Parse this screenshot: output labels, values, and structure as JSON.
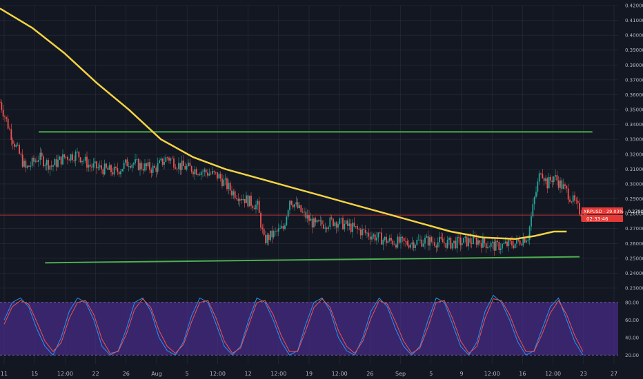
{
  "symbol_tag": "XRPUSD · 29.03% · 0.27905",
  "countdown": "02:33:46",
  "colors": {
    "background": "#131722",
    "grid": "#2a2e39",
    "candle_up": "#26a69a",
    "candle_down": "#ef5350",
    "ma": "#f5d442",
    "support_resistance": "#4caf50",
    "price_line": "#e53935",
    "oscillator_band": "#4a2c8a",
    "stoch_k": "#2196f3",
    "stoch_d": "#ef5350",
    "axis_text": "#b2b5be"
  },
  "chart_data": [
    {
      "type": "candlestick",
      "title": "",
      "x_tick_labels": [
        "11",
        "15",
        "12:00",
        "22",
        "26",
        "Aug",
        "5",
        "12:00",
        "12",
        "12:00",
        "19",
        "12:00",
        "26",
        "Sep",
        "5",
        "9",
        "12:00",
        "16",
        "12:00",
        "23",
        "27"
      ],
      "y_tick_labels": [
        "0.42000",
        "0.41000",
        "0.40000",
        "0.39000",
        "0.38000",
        "0.37000",
        "0.36000",
        "0.35000",
        "0.34000",
        "0.33000",
        "0.32000",
        "0.31000",
        "0.30000",
        "0.29000",
        "0.28000",
        "0.27000",
        "0.26000",
        "0.25000",
        "0.24000",
        "0.23000"
      ],
      "ylim": [
        0.23,
        0.42
      ],
      "close_path": [
        [
          0,
          0.355
        ],
        [
          2,
          0.33
        ],
        [
          4,
          0.31
        ],
        [
          6,
          0.318
        ],
        [
          8,
          0.312
        ],
        [
          10,
          0.318
        ],
        [
          12,
          0.32
        ],
        [
          14,
          0.312
        ],
        [
          16,
          0.31
        ],
        [
          18,
          0.308
        ],
        [
          20,
          0.315
        ],
        [
          22,
          0.312
        ],
        [
          24,
          0.31
        ],
        [
          26,
          0.318
        ],
        [
          28,
          0.312
        ],
        [
          30,
          0.31
        ],
        [
          32,
          0.308
        ],
        [
          34,
          0.305
        ],
        [
          36,
          0.295
        ],
        [
          38,
          0.29
        ],
        [
          40,
          0.285
        ],
        [
          41,
          0.262
        ],
        [
          42,
          0.265
        ],
        [
          44,
          0.27
        ],
        [
          45,
          0.29
        ],
        [
          47,
          0.28
        ],
        [
          49,
          0.272
        ],
        [
          52,
          0.275
        ],
        [
          55,
          0.27
        ],
        [
          58,
          0.265
        ],
        [
          60,
          0.262
        ],
        [
          63,
          0.26
        ],
        [
          66,
          0.262
        ],
        [
          70,
          0.26
        ],
        [
          74,
          0.262
        ],
        [
          77,
          0.258
        ],
        [
          80,
          0.26
        ],
        [
          82,
          0.265
        ],
        [
          83,
          0.29
        ],
        [
          84,
          0.31
        ],
        [
          85,
          0.3
        ],
        [
          86,
          0.305
        ],
        [
          88,
          0.295
        ],
        [
          90,
          0.282
        ],
        [
          91,
          0.279
        ]
      ],
      "moving_average": [
        [
          0,
          0.418
        ],
        [
          5,
          0.405
        ],
        [
          10,
          0.388
        ],
        [
          15,
          0.368
        ],
        [
          20,
          0.35
        ],
        [
          25,
          0.33
        ],
        [
          30,
          0.318
        ],
        [
          35,
          0.31
        ],
        [
          40,
          0.304
        ],
        [
          45,
          0.298
        ],
        [
          50,
          0.292
        ],
        [
          55,
          0.286
        ],
        [
          60,
          0.28
        ],
        [
          65,
          0.274
        ],
        [
          70,
          0.268
        ],
        [
          75,
          0.264
        ],
        [
          80,
          0.263
        ],
        [
          83,
          0.265
        ],
        [
          86,
          0.268
        ],
        [
          88,
          0.268
        ]
      ],
      "x_range": [
        0,
        96
      ],
      "resistance_line": [
        0.335,
        0.335
      ],
      "support_line": [
        0.247,
        0.251
      ],
      "current_price": 0.27905
    },
    {
      "type": "line",
      "title": "",
      "y_tick_labels": [
        "80.00",
        "60.00",
        "40.00",
        "20.00"
      ],
      "ylim": [
        10,
        90
      ],
      "band": [
        20,
        80
      ],
      "series": [
        {
          "values": [
            60,
            80,
            85,
            75,
            50,
            30,
            20,
            40,
            70,
            85,
            80,
            60,
            30,
            20,
            25,
            50,
            80,
            85,
            70,
            40,
            25,
            20,
            35,
            65,
            85,
            80,
            55,
            30,
            20,
            30,
            60,
            85,
            80,
            60,
            35,
            20,
            25,
            55,
            80,
            85,
            70,
            40,
            25,
            20,
            40,
            70,
            85,
            75,
            50,
            30,
            20,
            30,
            60,
            85,
            80,
            55,
            30,
            20,
            35,
            70,
            88,
            80,
            60,
            35,
            20,
            25,
            50,
            75,
            85,
            60,
            35,
            20
          ]
        },
        {
          "values": [
            55,
            75,
            82,
            78,
            58,
            36,
            24,
            34,
            62,
            80,
            82,
            66,
            38,
            22,
            24,
            44,
            72,
            84,
            74,
            48,
            30,
            22,
            32,
            58,
            80,
            82,
            62,
            36,
            22,
            28,
            54,
            80,
            82,
            66,
            42,
            24,
            24,
            48,
            74,
            84,
            74,
            48,
            30,
            22,
            36,
            62,
            82,
            78,
            58,
            36,
            22,
            28,
            52,
            80,
            82,
            62,
            36,
            22,
            30,
            62,
            84,
            82,
            66,
            42,
            24,
            24,
            44,
            68,
            82,
            66,
            42,
            24
          ]
        }
      ]
    }
  ]
}
